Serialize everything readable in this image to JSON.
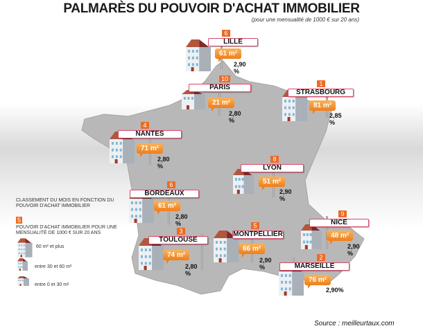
{
  "title": "PALMARÈS DU POUVOIR D'ACHAT IMMOBILIER",
  "subtitle": "(pour une mensualité de 1000 € sur 20 ans)",
  "colors": {
    "accent": "#ec6b24",
    "sign_border": "#d9476a",
    "map": "#b5b5b5"
  },
  "cities": [
    {
      "name": "LILLE",
      "rank": "6",
      "surface": "61 m²",
      "rate": "2,90 %",
      "size": "large"
    },
    {
      "name": "PARIS",
      "rank": "10",
      "surface": "21 m²",
      "rate": "2,80 %",
      "size": "small"
    },
    {
      "name": "STRASBOURG",
      "rank": "1",
      "surface": "81 m²",
      "rate": "2,85 %",
      "size": "large"
    },
    {
      "name": "NANTES",
      "rank": "4",
      "surface": "71 m²",
      "rate": "2,80 %",
      "size": "large"
    },
    {
      "name": "LYON",
      "rank": "8",
      "surface": "51 m²",
      "rate": "2,90 %",
      "size": "medium"
    },
    {
      "name": "BORDEAUX",
      "rank": "6",
      "surface": "61 m²",
      "rate": "2,80 %",
      "size": "large"
    },
    {
      "name": "NICE",
      "rank": "9",
      "surface": "48 m²",
      "rate": "2,90 %",
      "size": "medium"
    },
    {
      "name": "TOULOUSE",
      "rank": "3",
      "surface": "74 m²",
      "rate": "2,80 %",
      "size": "large"
    },
    {
      "name": "MONTPELLIER",
      "rank": "5",
      "surface": "66 m²",
      "rate": "2,90 %",
      "size": "large"
    },
    {
      "name": "MARSEILLE",
      "rank": "2",
      "surface": "76 m²",
      "rate": "2,90%",
      "size": "large"
    }
  ],
  "legend": {
    "ranking_label": "CLASSEMENT DU MOIS EN FONCTION DU POUVOIR D'ACHAT IMMOBILIER",
    "rank_example": "5",
    "power_label": "POUVOIR D'ACHAT IMMOBILIER POUR UNE MENSUALITÉ DE 1000 € SUR 20 ANS",
    "items": [
      {
        "label": "60 m² et plus",
        "size": "large"
      },
      {
        "label": "entre 30 et 60 m²",
        "size": "medium"
      },
      {
        "label": "entre 0 et 30 m²",
        "size": "small"
      }
    ]
  },
  "source": "Source : meilleurtaux.com"
}
